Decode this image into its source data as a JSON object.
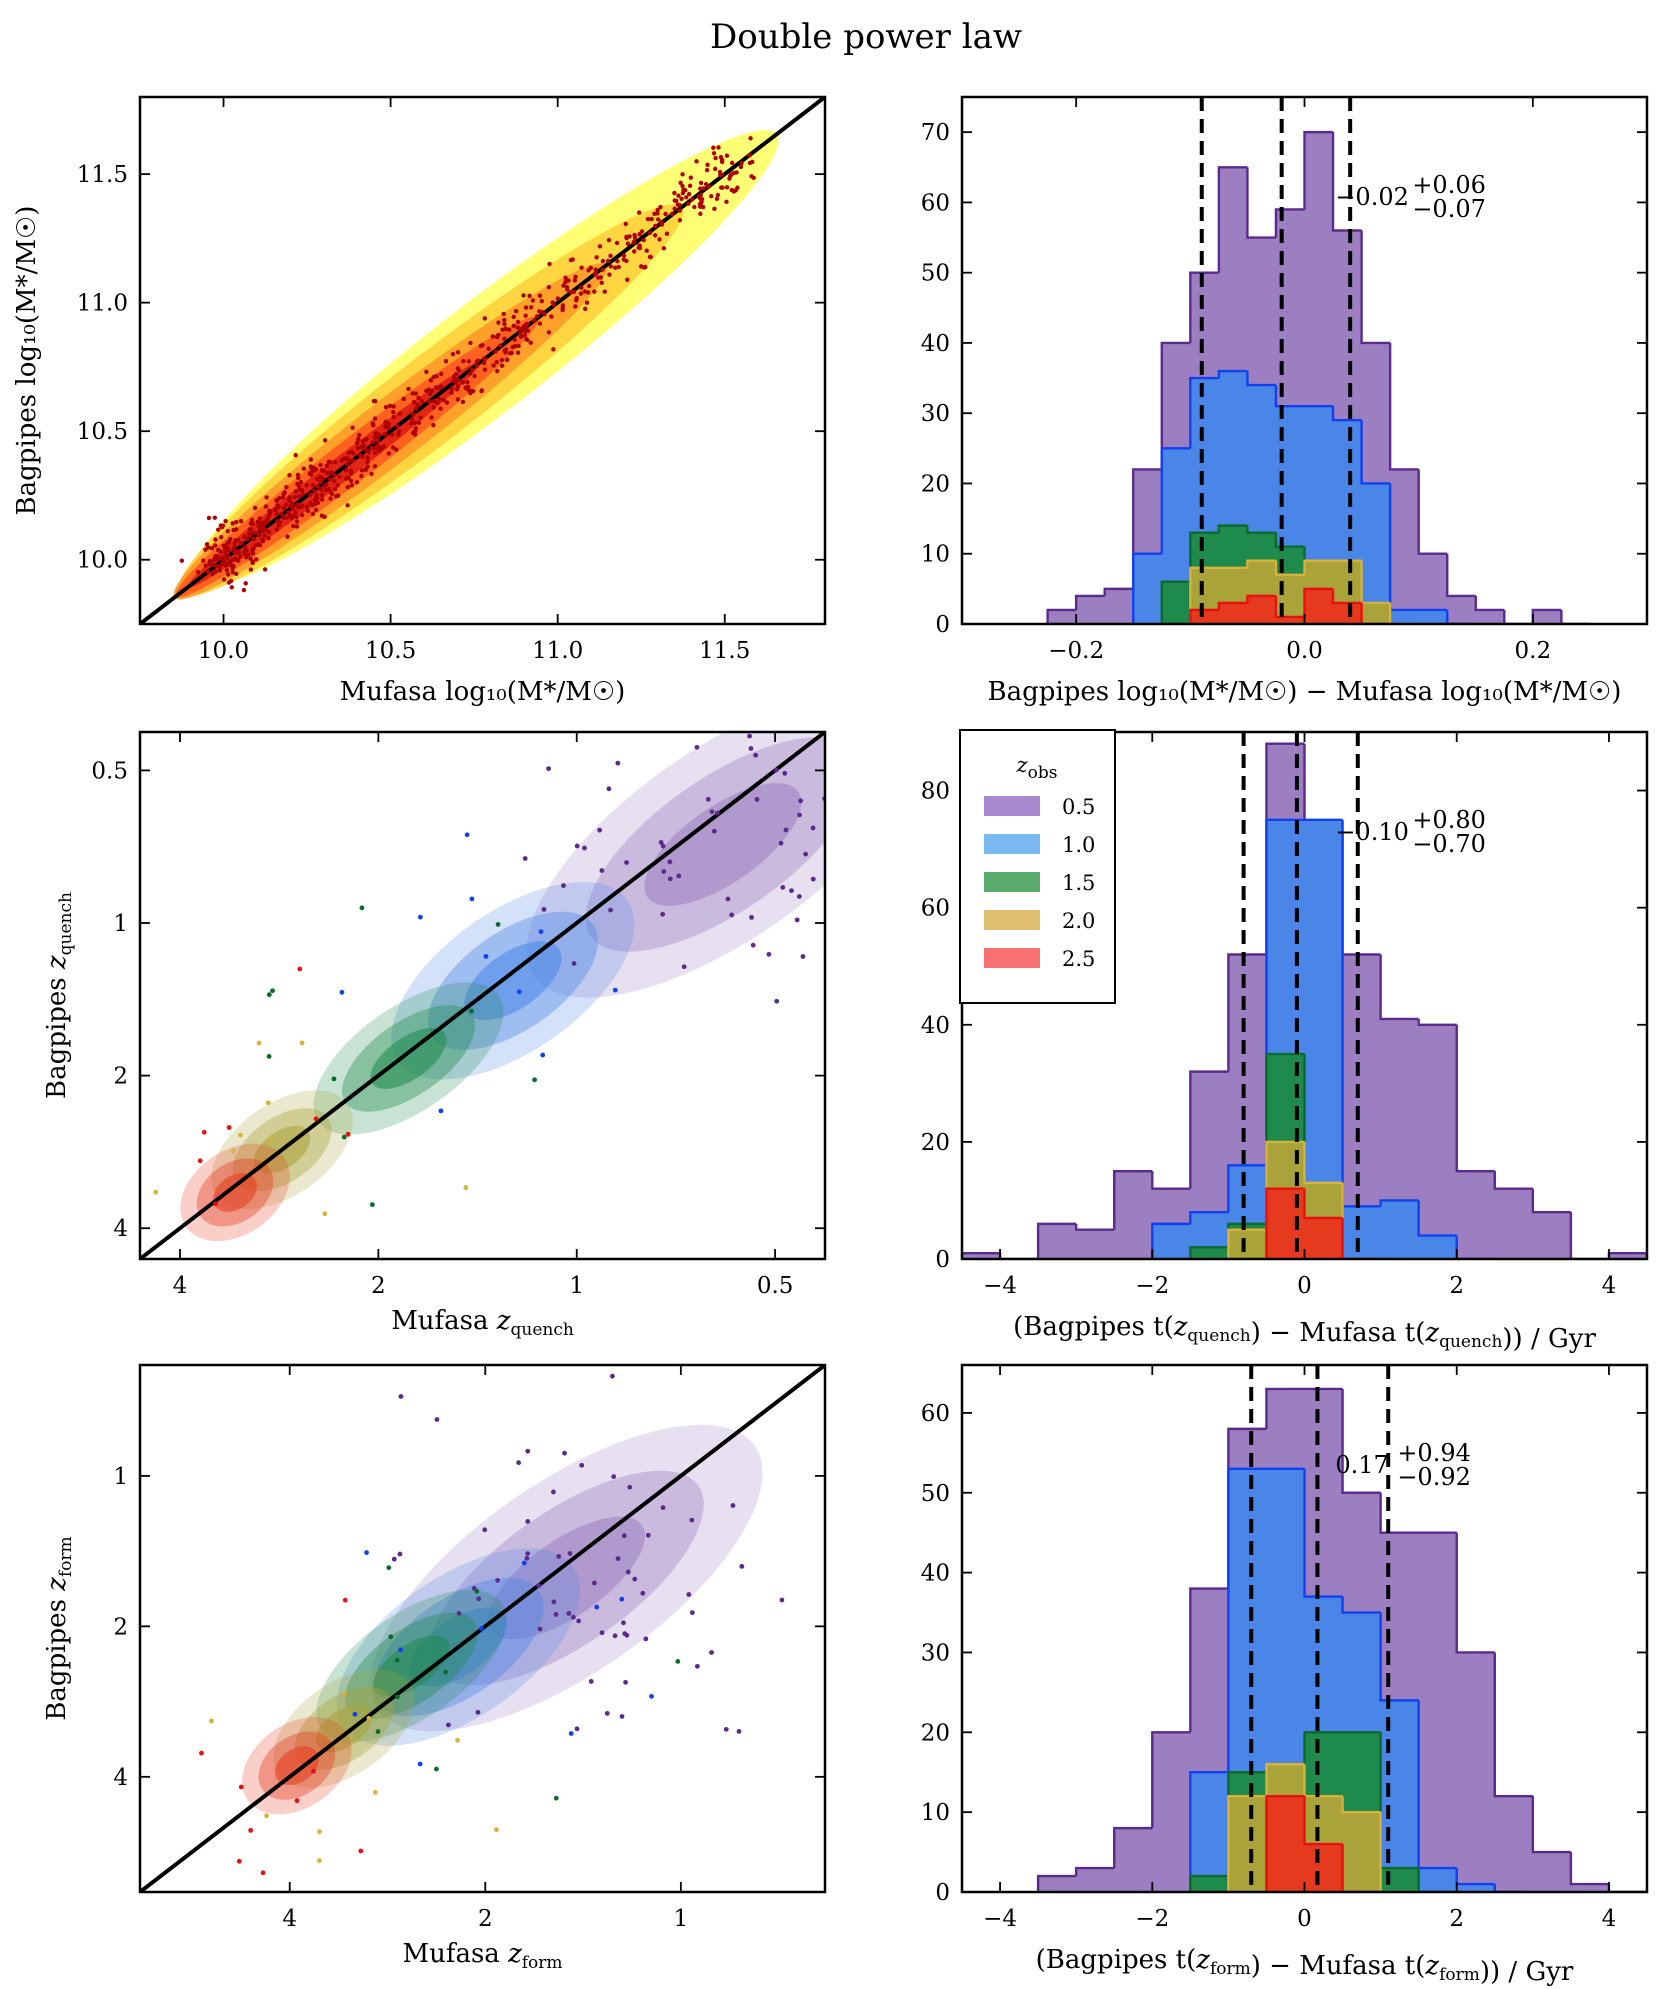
{
  "title": "Double power law",
  "chart_data": [
    {
      "id": "mass-scatter",
      "type": "scatter",
      "xlabel": "Mufasa log₁₀(M*/M☉)",
      "ylabel": "Bagpipes log₁₀(M*/M☉)",
      "xlim": [
        9.75,
        11.8
      ],
      "ylim": [
        9.75,
        11.8
      ],
      "xticks": [
        "10.0",
        "10.5",
        "11.0",
        "11.5"
      ],
      "yticks": [
        "10.0",
        "10.5",
        "11.0",
        "11.5"
      ],
      "one_to_one_line": true,
      "density_colors": [
        "#ffff66",
        "#ffd23c",
        "#ff9a28",
        "#ff5a1e",
        "#e01e14"
      ],
      "point_color": "#b00000"
    },
    {
      "id": "mass-hist",
      "type": "bar",
      "xlabel": "Bagpipes log₁₀(M*/M☉) − Mufasa log₁₀(M*/M☉)",
      "xlim": [
        -0.3,
        0.3
      ],
      "ylim": [
        0,
        75
      ],
      "xticks": [
        "−0.2",
        "0.0",
        "0.2"
      ],
      "yticks": [
        "0",
        "10",
        "20",
        "30",
        "40",
        "50",
        "60",
        "70"
      ],
      "annotation": {
        "median": "−0.02",
        "plus": "+0.06",
        "minus": "−0.07"
      },
      "dashed_lines": [
        -0.09,
        -0.02,
        0.04
      ],
      "bin_edges": [
        -0.25,
        -0.225,
        -0.2,
        -0.175,
        -0.15,
        -0.125,
        -0.1,
        -0.075,
        -0.05,
        -0.025,
        0.0,
        0.025,
        0.05,
        0.075,
        0.1,
        0.125,
        0.15,
        0.175,
        0.2,
        0.225,
        0.25
      ],
      "series": [
        {
          "name": "0.5",
          "values": [
            0,
            2,
            4,
            5,
            22,
            40,
            50,
            65,
            55,
            59,
            70,
            56,
            40,
            22,
            10,
            4,
            2,
            0,
            2,
            0
          ]
        },
        {
          "name": "1.0",
          "values": [
            0,
            0,
            0,
            0,
            10,
            25,
            35,
            36,
            34,
            31,
            31,
            29,
            20,
            2,
            2,
            0,
            0,
            0,
            0,
            0
          ]
        },
        {
          "name": "1.5",
          "values": [
            0,
            0,
            0,
            0,
            0,
            6,
            13,
            14,
            13,
            11,
            8,
            4,
            2,
            0,
            0,
            0,
            0,
            0,
            0,
            0
          ]
        },
        {
          "name": "2.0",
          "values": [
            0,
            0,
            0,
            0,
            0,
            0,
            8,
            8,
            9,
            7,
            9,
            9,
            3,
            0,
            0,
            0,
            0,
            0,
            0,
            0
          ]
        },
        {
          "name": "2.5",
          "values": [
            0,
            0,
            0,
            0,
            0,
            0,
            2,
            3,
            4,
            1,
            5,
            3,
            0,
            0,
            0,
            0,
            0,
            0,
            0,
            0
          ]
        }
      ]
    },
    {
      "id": "quench-scatter",
      "type": "scatter",
      "xlabel": "Mufasa z_quench",
      "ylabel": "Bagpipes z_quench",
      "xticks": [
        "4",
        "2",
        "1",
        "0.5"
      ],
      "yticks": [
        "0.5",
        "1",
        "2",
        "4"
      ],
      "one_to_one_line": true,
      "groups": [
        {
          "name": "0.5",
          "center": [
            0.6,
            0.7
          ]
        },
        {
          "name": "1.0",
          "center": [
            1.25,
            1.3
          ]
        },
        {
          "name": "1.5",
          "center": [
            1.8,
            1.85
          ]
        },
        {
          "name": "2.0",
          "center": [
            2.8,
            2.8
          ]
        },
        {
          "name": "2.5",
          "center": [
            3.3,
            3.4
          ]
        }
      ]
    },
    {
      "id": "quench-hist",
      "type": "bar",
      "xlabel": "(Bagpipes t(z_quench) − Mufasa t(z_quench)) / Gyr",
      "xlim": [
        -4.5,
        4.5
      ],
      "ylim": [
        0,
        90
      ],
      "xticks": [
        "−4",
        "−2",
        "0",
        "2",
        "4"
      ],
      "yticks": [
        "0",
        "20",
        "40",
        "60",
        "80"
      ],
      "annotation": {
        "median": "−0.10",
        "plus": "+0.80",
        "minus": "−0.70"
      },
      "dashed_lines": [
        -0.8,
        -0.1,
        0.7
      ],
      "legend": {
        "title": "z_obs",
        "entries": [
          "0.5",
          "1.0",
          "1.5",
          "2.0",
          "2.5"
        ]
      },
      "bin_edges": [
        -4.5,
        -4.0,
        -3.5,
        -3.0,
        -2.5,
        -2.0,
        -1.5,
        -1.0,
        -0.5,
        0.0,
        0.5,
        1.0,
        1.5,
        2.0,
        2.5,
        3.0,
        3.5,
        4.0,
        4.5
      ],
      "series": [
        {
          "name": "0.5",
          "values": [
            1,
            0,
            6,
            5,
            15,
            12,
            32,
            52,
            88,
            73,
            52,
            41,
            40,
            15,
            12,
            8,
            0,
            1
          ]
        },
        {
          "name": "1.0",
          "values": [
            0,
            0,
            0,
            0,
            0,
            6,
            8,
            16,
            75,
            75,
            9,
            10,
            4,
            0,
            0,
            0,
            0,
            0
          ]
        },
        {
          "name": "1.5",
          "values": [
            0,
            0,
            0,
            0,
            0,
            0,
            2,
            6,
            35,
            12,
            0,
            0,
            0,
            0,
            0,
            0,
            0,
            0
          ]
        },
        {
          "name": "2.0",
          "values": [
            0,
            0,
            0,
            0,
            0,
            0,
            0,
            5,
            20,
            13,
            0,
            0,
            0,
            0,
            0,
            0,
            0,
            0
          ]
        },
        {
          "name": "2.5",
          "values": [
            0,
            0,
            0,
            0,
            0,
            0,
            0,
            0,
            12,
            7,
            0,
            0,
            0,
            0,
            0,
            0,
            0,
            0
          ]
        }
      ]
    },
    {
      "id": "form-scatter",
      "type": "scatter",
      "xlabel": "Mufasa z_form",
      "ylabel": "Bagpipes z_form",
      "xticks": [
        "4",
        "2",
        "1"
      ],
      "yticks": [
        "1",
        "2",
        "4"
      ],
      "one_to_one_line": true,
      "groups": [
        {
          "name": "0.5",
          "center": [
            1.5,
            1.6
          ]
        },
        {
          "name": "1.0",
          "center": [
            2.2,
            2.2
          ]
        },
        {
          "name": "1.5",
          "center": [
            2.6,
            2.4
          ]
        },
        {
          "name": "2.0",
          "center": [
            3.3,
            3.2
          ]
        },
        {
          "name": "2.5",
          "center": [
            3.9,
            3.8
          ]
        }
      ]
    },
    {
      "id": "form-hist",
      "type": "bar",
      "xlabel": "(Bagpipes t(z_form) − Mufasa t(z_form)) / Gyr",
      "xlim": [
        -4.5,
        4.5
      ],
      "ylim": [
        0,
        66
      ],
      "xticks": [
        "−4",
        "−2",
        "0",
        "2",
        "4"
      ],
      "yticks": [
        "0",
        "10",
        "20",
        "30",
        "40",
        "50",
        "60"
      ],
      "annotation": {
        "median": "0.17",
        "plus": "+0.94",
        "minus": "−0.92"
      },
      "dashed_lines": [
        -0.7,
        0.17,
        1.1
      ],
      "bin_edges": [
        -4.5,
        -4.0,
        -3.5,
        -3.0,
        -2.5,
        -2.0,
        -1.5,
        -1.0,
        -0.5,
        0.0,
        0.5,
        1.0,
        1.5,
        2.0,
        2.5,
        3.0,
        3.5,
        4.0,
        4.5
      ],
      "series": [
        {
          "name": "0.5",
          "values": [
            0,
            0,
            2,
            3,
            8,
            20,
            38,
            58,
            63,
            63,
            50,
            45,
            45,
            30,
            12,
            5,
            1,
            0
          ]
        },
        {
          "name": "1.0",
          "values": [
            0,
            0,
            0,
            0,
            0,
            0,
            15,
            53,
            53,
            37,
            35,
            24,
            3,
            1,
            0,
            0,
            0,
            0
          ]
        },
        {
          "name": "1.5",
          "values": [
            0,
            0,
            0,
            0,
            0,
            0,
            2,
            15,
            10,
            20,
            20,
            3,
            0,
            0,
            0,
            0,
            0,
            0
          ]
        },
        {
          "name": "2.0",
          "values": [
            0,
            0,
            0,
            0,
            0,
            0,
            0,
            12,
            16,
            12,
            10,
            0,
            0,
            0,
            0,
            0,
            0,
            0
          ]
        },
        {
          "name": "2.5",
          "values": [
            0,
            0,
            0,
            0,
            0,
            0,
            0,
            0,
            12,
            6,
            0,
            0,
            0,
            0,
            0,
            0,
            0,
            0
          ]
        }
      ]
    }
  ],
  "colors": {
    "0.5": {
      "fill": "#9b7fc1",
      "edge": "#5b2a8c"
    },
    "1.0": {
      "fill": "#4a86e8",
      "edge": "#1040f0"
    },
    "1.5": {
      "fill": "#1e8a4c",
      "edge": "#0b6b2b"
    },
    "2.0": {
      "fill": "#a9a33a",
      "edge": "#d8b23a"
    },
    "2.5": {
      "fill": "#e63a1e",
      "edge": "#e81010"
    },
    "legend_fill": {
      "0.5": "#a98ad0",
      "1.0": "#7ab8f0",
      "1.5": "#5aaa6c",
      "2.0": "#e0c070",
      "2.5": "#f87070"
    }
  }
}
